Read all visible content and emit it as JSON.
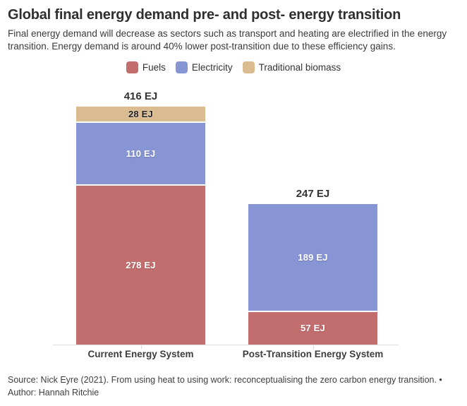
{
  "header": {
    "title": "Global final energy demand pre- and post- energy transition",
    "subtitle": "Final energy demand will decrease as sectors such as transport and heating are electrified in the energy transition. Energy demand is around 40% lower post-transition due to these efficiency gains."
  },
  "chart_data": {
    "type": "bar",
    "stacked": true,
    "orientation": "vertical",
    "unit": "EJ",
    "categories": [
      "Current Energy System",
      "Post-Transition Energy System"
    ],
    "series": [
      {
        "name": "Fuels",
        "color": "#c36e6e",
        "values": [
          278,
          57
        ]
      },
      {
        "name": "Electricity",
        "color": "#8795d4",
        "values": [
          110,
          189
        ]
      },
      {
        "name": "Traditional biomass",
        "color": "#dbbc91",
        "values": [
          28,
          0
        ]
      }
    ],
    "totals": [
      416,
      247
    ],
    "total_labels": [
      "416 EJ",
      "247 EJ"
    ],
    "segment_labels": [
      [
        "278 EJ",
        "110 EJ",
        "28 EJ"
      ],
      [
        "57 EJ",
        "189 EJ"
      ]
    ],
    "ylim": [
      0,
      416
    ],
    "grid": false,
    "legend_position": "top",
    "legend": [
      "Fuels",
      "Electricity",
      "Traditional biomass"
    ],
    "axis_color": "#dddddd"
  },
  "footer": {
    "line1": "Source: Nick Eyre (2021). From using heat to using work: reconceptualising the zero carbon energy transition. •",
    "line2": "Author: Hannah Ritchie"
  }
}
